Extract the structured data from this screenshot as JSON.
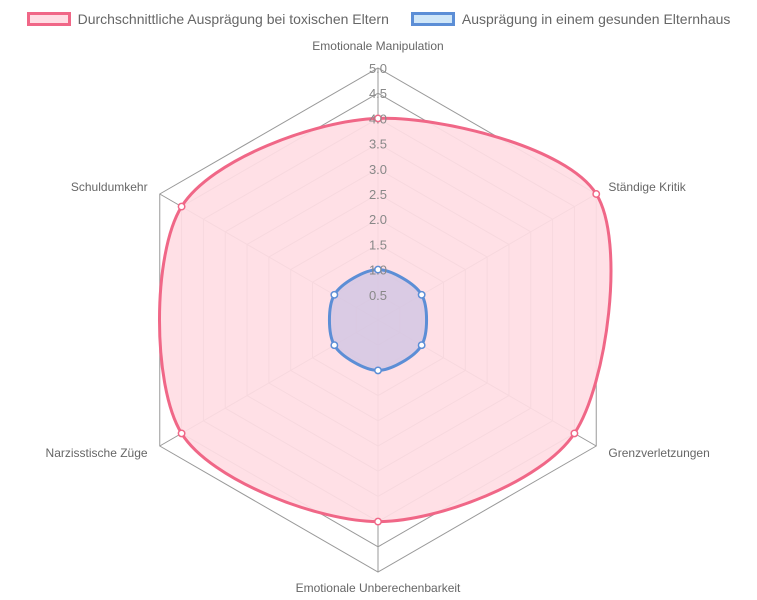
{
  "chart_data": {
    "type": "radar",
    "categories": [
      "Emotionale Manipulation",
      "Ständige Kritik",
      "Grenzverletzungen",
      "Emotionale Unberechenbarkeit",
      "Narzisstische Züge",
      "Schuldumkehr"
    ],
    "series": [
      {
        "name": "Durchschnittliche Ausprägung bei toxischen Eltern",
        "values": [
          4.0,
          5.0,
          4.5,
          4.0,
          4.5,
          4.5
        ],
        "border_color": "#f06787",
        "fill_color": "#ffdde4"
      },
      {
        "name": "Ausprägung in einem gesunden Elternhaus",
        "values": [
          1.0,
          1.0,
          1.0,
          1.0,
          1.0,
          1.0
        ],
        "border_color": "#5c8ed6",
        "fill_color": "#cfe6f8"
      }
    ],
    "scale": {
      "min": 0,
      "max": 5,
      "step": 0.5,
      "tick_labels": [
        "0.5",
        "1.0",
        "1.5",
        "2.0",
        "2.5",
        "3.0",
        "3.5",
        "4.0",
        "4.5",
        "5.0"
      ]
    },
    "grid": true,
    "legend_position": "top",
    "colors": {
      "grid": "#999999",
      "overlap_fill": "#d4c7e3"
    }
  }
}
